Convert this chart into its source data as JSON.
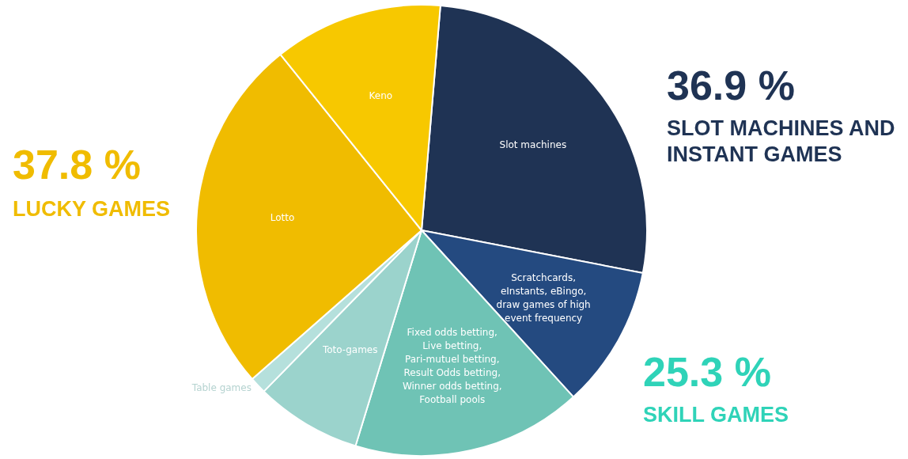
{
  "chart_data": {
    "type": "pie",
    "categories": [
      "Slot machines",
      "Scratchcards, eInstants, eBingo, draw games of high event frequency",
      "Fixed odds betting, Live betting, Pari-mutuel betting, Result Odds betting, Winner odds betting, Football pools",
      "Toto-games",
      "Table games",
      "Lotto",
      "Keno"
    ],
    "values": [
      26.7,
      10.2,
      16.5,
      7.6,
      1.2,
      25.7,
      12.1
    ],
    "colors": [
      "#1f3354",
      "#244a80",
      "#6fc3b5",
      "#9bd3cc",
      "#b5e0dc",
      "#f0bc00",
      "#f7c800"
    ],
    "annotations": [
      "36.9 %",
      "SLOT MACHINES AND INSTANT GAMES",
      "25.3 %",
      "SKILL GAMES",
      "37.8 %",
      "LUCKY GAMES"
    ],
    "legend": false
  }
}
